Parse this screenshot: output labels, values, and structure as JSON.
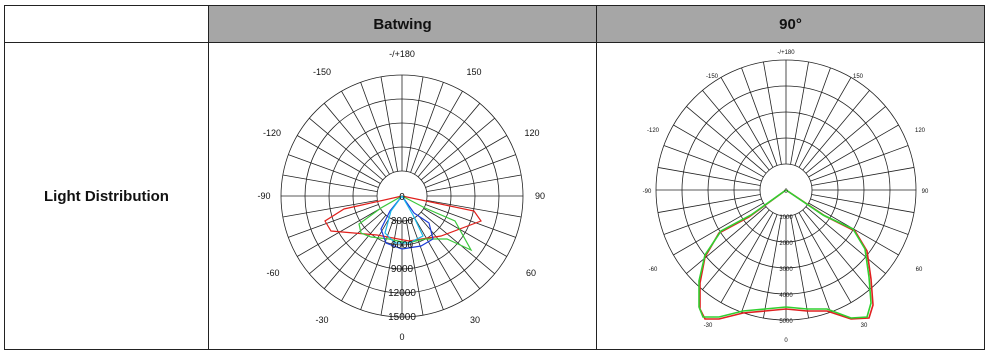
{
  "table": {
    "columns": [
      "",
      "Batwing",
      "90°"
    ],
    "row_label": "Light Distribution"
  },
  "plots": {
    "batwing": {
      "angle_labels": {
        "top": "-/+180",
        "upper_left": "-150",
        "upper_right": "150",
        "mid_upper_left": "-120",
        "mid_upper_right": "120",
        "left": "-90",
        "right": "90",
        "lower_left": "-60",
        "lower_right": "60",
        "bottom_left": "-30",
        "bottom_right": "30",
        "bottom": "0"
      },
      "radial_labels": [
        "0",
        "3000",
        "6000",
        "9000",
        "12000",
        "15000"
      ],
      "colors": {
        "red": "#e0201c",
        "green": "#3cc83c",
        "blue": "#1c3cd8",
        "cyan": "#1ab8e8"
      }
    },
    "ninety": {
      "angle_labels": {
        "top": "-/+180",
        "upper_left": "-150",
        "upper_right": "150",
        "mid_upper_left": "-120",
        "mid_upper_right": "120",
        "left": "-90",
        "right": "90",
        "lower_left": "-60",
        "lower_right": "60",
        "bottom_left": "-30",
        "bottom_right": "30",
        "bottom": "0"
      },
      "radial_labels": [
        "0",
        "1000",
        "2000",
        "3000",
        "4000",
        "5000"
      ],
      "colors": {
        "red": "#e02020",
        "green": "#30d030"
      }
    }
  }
}
